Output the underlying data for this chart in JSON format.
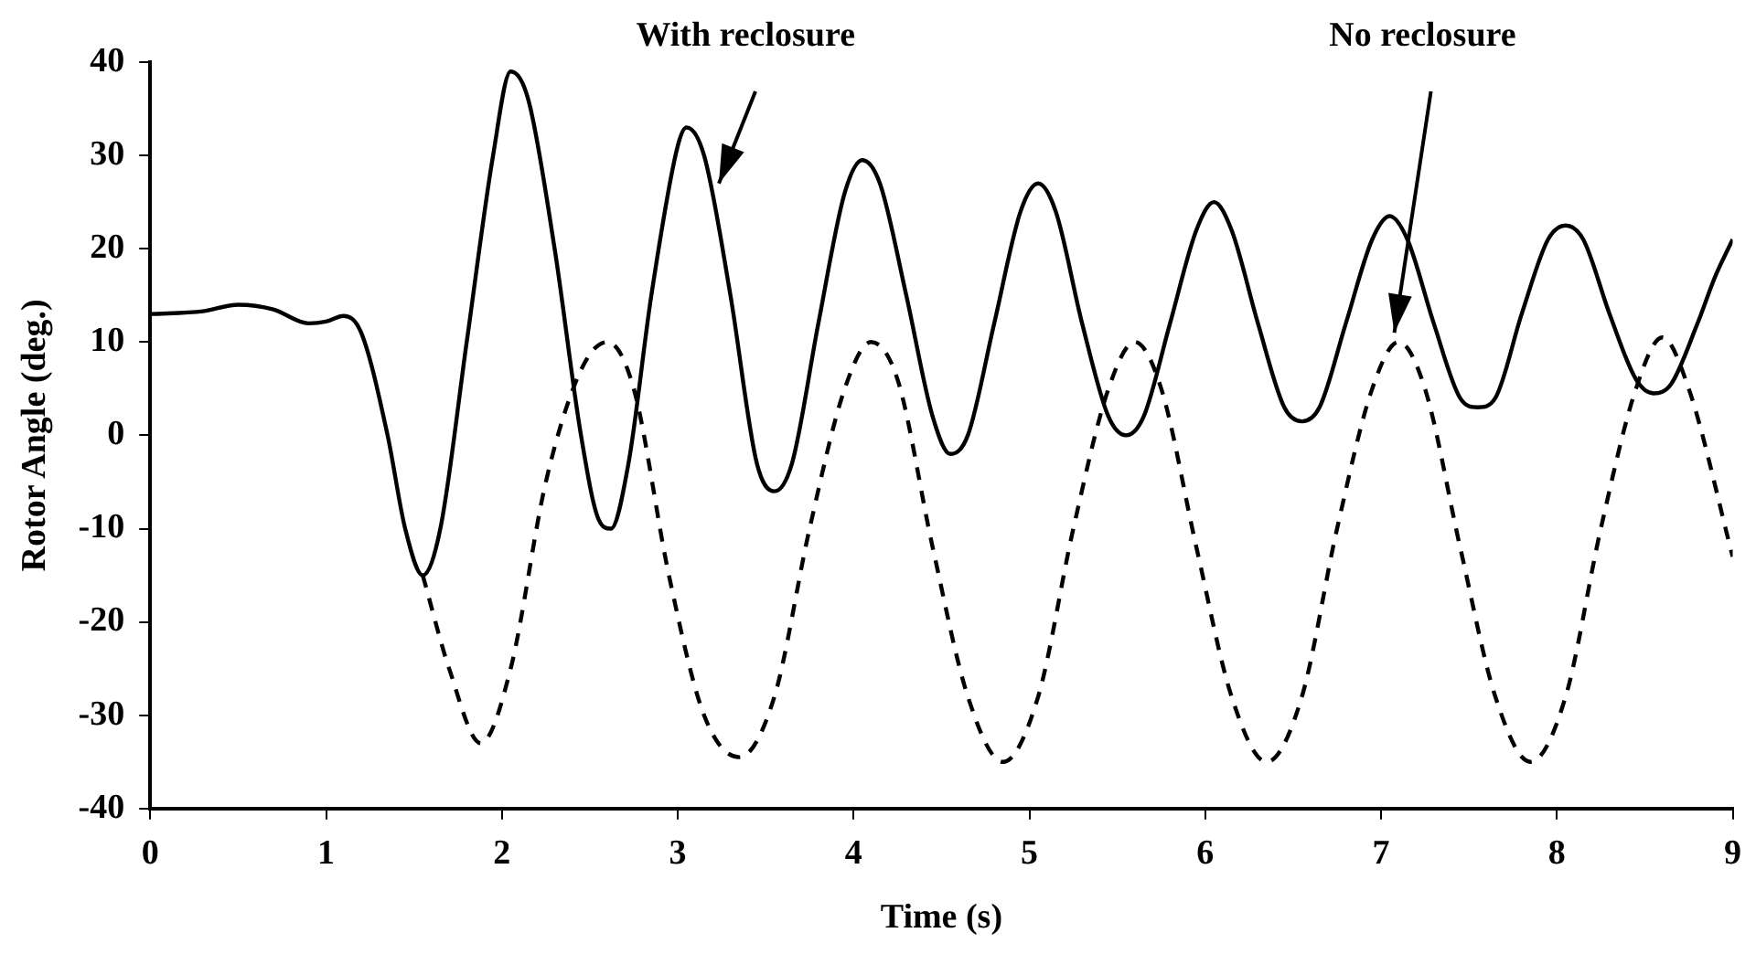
{
  "chart_data": {
    "type": "line",
    "xlabel": "Time (s)",
    "ylabel": "Rotor Angle (deg.)",
    "xlim": [
      0,
      9
    ],
    "xticks": [
      0,
      1,
      2,
      3,
      4,
      5,
      6,
      7,
      8,
      9
    ],
    "ylim": [
      -40,
      40
    ],
    "yticks": [
      -40,
      -30,
      -20,
      -10,
      0,
      10,
      20,
      30,
      40
    ],
    "grid": false,
    "legend": false,
    "marker": "none",
    "annotations": [
      {
        "text": "With reclosure",
        "x": 3.23,
        "y": 27
      },
      {
        "text": "No reclosure",
        "x": 7.08,
        "y": 11
      }
    ],
    "series": [
      {
        "color": "#000000",
        "line_style": "solid",
        "x": [
          0,
          0.3,
          0.5,
          0.7,
          0.9,
          1.0,
          1.1,
          1.2,
          1.35,
          1.45,
          1.55,
          1.65,
          1.8,
          1.95,
          2.05,
          2.15,
          2.3,
          2.45,
          2.55,
          2.62,
          2.72,
          2.85,
          3.0,
          3.05,
          3.15,
          3.3,
          3.45,
          3.55,
          3.65,
          3.8,
          3.95,
          4.05,
          4.15,
          4.3,
          4.45,
          4.55,
          4.65,
          4.8,
          4.95,
          5.05,
          5.15,
          5.3,
          5.45,
          5.55,
          5.65,
          5.8,
          5.95,
          6.05,
          6.15,
          6.3,
          6.45,
          6.55,
          6.65,
          6.8,
          6.95,
          7.05,
          7.15,
          7.3,
          7.45,
          7.55,
          7.65,
          7.8,
          7.95,
          8.05,
          8.15,
          8.3,
          8.45,
          8.55,
          8.65,
          8.8,
          8.9,
          9.0
        ],
        "values": [
          13,
          13.3,
          14,
          13.5,
          12,
          12.2,
          12.8,
          11,
          0,
          -10,
          -15,
          -10,
          10,
          30,
          39,
          36,
          20,
          0,
          -9,
          -10,
          -3,
          15,
          31,
          33,
          30,
          15,
          -3,
          -6,
          -3,
          12,
          26,
          29.5,
          27,
          15,
          2,
          -2,
          0,
          12,
          24,
          27,
          24,
          12,
          2,
          0,
          2,
          12,
          22,
          25,
          22,
          12,
          3,
          1.5,
          3,
          12,
          21,
          23.5,
          21,
          12,
          4,
          3,
          4,
          13,
          21,
          22.5,
          21,
          13,
          6,
          4.5,
          5.5,
          12,
          17,
          21
        ]
      },
      {
        "color": "#000000",
        "line_style": "dashed",
        "x": [
          1.55,
          1.7,
          1.88,
          2.05,
          2.25,
          2.45,
          2.6,
          2.75,
          2.95,
          3.15,
          3.35,
          3.55,
          3.75,
          3.95,
          4.1,
          4.25,
          4.45,
          4.65,
          4.85,
          5.05,
          5.25,
          5.45,
          5.6,
          5.75,
          5.95,
          6.15,
          6.35,
          6.55,
          6.75,
          6.95,
          7.1,
          7.25,
          7.45,
          7.65,
          7.85,
          8.05,
          8.25,
          8.45,
          8.6,
          8.75,
          9.0
        ],
        "values": [
          -15,
          -25,
          -33,
          -25,
          -5,
          7,
          10,
          5,
          -15,
          -30,
          -34.5,
          -28,
          -10,
          5,
          10,
          6,
          -12,
          -28,
          -35,
          -28,
          -10,
          5,
          10,
          5,
          -12,
          -28,
          -35,
          -28,
          -10,
          5,
          10,
          5,
          -12,
          -28,
          -35,
          -28,
          -10,
          5,
          10.5,
          5,
          -13
        ]
      }
    ]
  }
}
